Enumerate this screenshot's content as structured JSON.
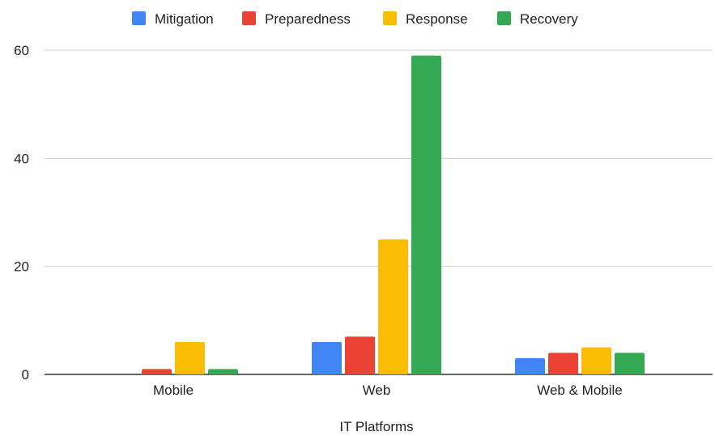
{
  "chart_data": {
    "type": "bar",
    "categories": [
      "Mobile",
      "Web",
      "Web & Mobile"
    ],
    "series": [
      {
        "name": "Mitigation",
        "color": "#4285f4",
        "values": [
          0,
          6,
          3
        ]
      },
      {
        "name": "Preparedness",
        "color": "#ea4335",
        "values": [
          1,
          7,
          4
        ]
      },
      {
        "name": "Response",
        "color": "#fbbc04",
        "values": [
          6,
          25,
          5
        ]
      },
      {
        "name": "Recovery",
        "color": "#34a853",
        "values": [
          1,
          59,
          4
        ]
      }
    ],
    "title": "",
    "xlabel": "IT Platforms",
    "ylabel": "",
    "ylim": [
      0,
      60
    ],
    "yticks": [
      0,
      20,
      40,
      60
    ],
    "grid": true,
    "legend": "top"
  }
}
